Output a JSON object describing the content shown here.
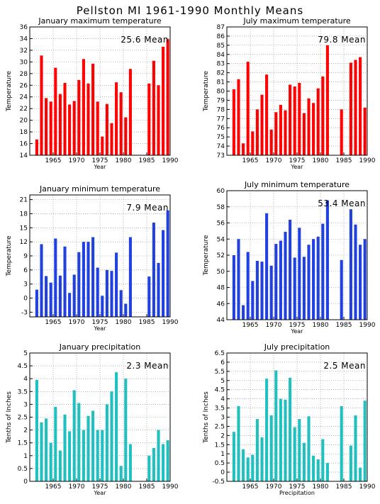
{
  "title": "Pellston MI   1961-1990 Monthly Means",
  "chart_data": [
    {
      "type": "bar",
      "title": "January maximum temperature",
      "ylabel": "Temperature",
      "xlabel": "Year",
      "mean_label": "25.6 Mean",
      "color": "#ff0000",
      "x": [
        1961,
        1962,
        1963,
        1964,
        1965,
        1966,
        1967,
        1968,
        1969,
        1970,
        1971,
        1972,
        1973,
        1974,
        1975,
        1976,
        1977,
        1978,
        1979,
        1980,
        1981,
        1982,
        1983,
        1984,
        1985,
        1986,
        1987,
        1988,
        1989,
        1990
      ],
      "values": [
        null,
        16.7,
        31.1,
        23.8,
        23.2,
        29.0,
        24.5,
        26.4,
        22.7,
        23.3,
        26.9,
        30.5,
        26.3,
        29.7,
        23.2,
        17.2,
        22.8,
        19.5,
        26.5,
        24.8,
        20.5,
        28.8,
        null,
        null,
        null,
        26.3,
        30.2,
        26.0,
        32.6,
        33.9
      ],
      "ylim": [
        14,
        36
      ],
      "yticks": [
        14,
        16,
        18,
        20,
        22,
        24,
        26,
        28,
        30,
        32,
        34,
        36
      ],
      "xticks": [
        1965,
        1970,
        1975,
        1980,
        1985,
        1990
      ]
    },
    {
      "type": "bar",
      "title": "July maximum temperature",
      "ylabel": "Temperature",
      "xlabel": "Year",
      "mean_label": "79.8 Mean",
      "color": "#ff0000",
      "x": [
        1961,
        1962,
        1963,
        1964,
        1965,
        1966,
        1967,
        1968,
        1969,
        1970,
        1971,
        1972,
        1973,
        1974,
        1975,
        1976,
        1977,
        1978,
        1979,
        1980,
        1981,
        1982,
        1983,
        1984,
        1985,
        1986,
        1987,
        1988,
        1989,
        1990
      ],
      "values": [
        null,
        80.2,
        81.3,
        74.3,
        83.2,
        75.6,
        78.0,
        79.6,
        81.8,
        75.8,
        77.7,
        78.5,
        77.9,
        80.7,
        80.5,
        80.9,
        77.6,
        79.2,
        78.7,
        80.3,
        81.6,
        85.0,
        null,
        null,
        78.0,
        null,
        83.1,
        83.4,
        83.7,
        78.2
      ],
      "ylim": [
        73,
        87
      ],
      "yticks": [
        73,
        74,
        75,
        76,
        77,
        78,
        79,
        80,
        81,
        82,
        83,
        84,
        85,
        86,
        87
      ],
      "xticks": [
        1965,
        1970,
        1975,
        1980,
        1985,
        1990
      ]
    },
    {
      "type": "bar",
      "title": "January minimum temperature",
      "ylabel": "Temperature",
      "xlabel": "Year",
      "mean_label": "7.9 Mean",
      "color": "#2040e0",
      "x": [
        1961,
        1962,
        1963,
        1964,
        1965,
        1966,
        1967,
        1968,
        1969,
        1970,
        1971,
        1972,
        1973,
        1974,
        1975,
        1976,
        1977,
        1978,
        1979,
        1980,
        1981,
        1982,
        1983,
        1984,
        1985,
        1986,
        1987,
        1988,
        1989,
        1990
      ],
      "values": [
        null,
        1.8,
        11.5,
        4.7,
        3.3,
        12.7,
        4.8,
        11.0,
        1.1,
        5.0,
        9.8,
        12.0,
        12.0,
        13.0,
        6.5,
        0.5,
        6.0,
        5.8,
        9.7,
        1.7,
        -1.2,
        13.0,
        null,
        null,
        null,
        4.6,
        16.1,
        7.5,
        14.5,
        18.7
      ],
      "ylim": [
        -4,
        22
      ],
      "yticks": [
        -3,
        0,
        3,
        6,
        9,
        12,
        15,
        18,
        21
      ],
      "xticks": [
        1965,
        1970,
        1975,
        1980,
        1985,
        1990
      ]
    },
    {
      "type": "bar",
      "title": "July minimum temperature",
      "ylabel": "Temperature",
      "xlabel": "Year",
      "mean_label": "53.4 Mean",
      "color": "#2040e0",
      "x": [
        1961,
        1962,
        1963,
        1964,
        1965,
        1966,
        1967,
        1968,
        1969,
        1970,
        1971,
        1972,
        1973,
        1974,
        1975,
        1976,
        1977,
        1978,
        1979,
        1980,
        1981,
        1982,
        1983,
        1984,
        1985,
        1986,
        1987,
        1988,
        1989,
        1990
      ],
      "values": [
        null,
        52.0,
        54.0,
        45.8,
        52.4,
        48.8,
        51.3,
        51.2,
        57.2,
        50.7,
        53.4,
        53.8,
        54.9,
        56.4,
        51.7,
        55.4,
        51.8,
        53.3,
        54.0,
        54.3,
        55.9,
        58.8,
        null,
        null,
        51.4,
        null,
        57.7,
        55.8,
        53.3,
        54.0
      ],
      "ylim": [
        44,
        60
      ],
      "yticks": [
        44,
        46,
        48,
        50,
        52,
        54,
        56,
        58,
        60
      ],
      "xticks": [
        1965,
        1970,
        1975,
        1980,
        1985,
        1990
      ]
    },
    {
      "type": "bar",
      "title": "January precipitation",
      "ylabel": "Tenths of Inches",
      "xlabel": "Year",
      "mean_label": "2.3 Mean",
      "color": "#20c0c0",
      "x": [
        1961,
        1962,
        1963,
        1964,
        1965,
        1966,
        1967,
        1968,
        1969,
        1970,
        1971,
        1972,
        1973,
        1974,
        1975,
        1976,
        1977,
        1978,
        1979,
        1980,
        1981,
        1982,
        1983,
        1984,
        1985,
        1986,
        1987,
        1988,
        1989,
        1990
      ],
      "values": [
        null,
        3.95,
        2.3,
        2.45,
        1.5,
        2.9,
        1.2,
        2.6,
        1.95,
        3.55,
        3.05,
        2.0,
        2.55,
        2.75,
        2.0,
        2.0,
        3.0,
        3.5,
        4.25,
        0.6,
        4.0,
        1.45,
        null,
        null,
        null,
        1.0,
        1.3,
        2.0,
        1.45,
        1.6
      ],
      "ylim": [
        0,
        5
      ],
      "yticks": [
        0,
        0.5,
        1,
        1.5,
        2,
        2.5,
        3,
        3.5,
        4,
        4.5,
        5
      ],
      "ytick_labels": [
        "0",
        "0.5",
        "1",
        "1.5",
        "2",
        "2.5",
        "3",
        "3.5",
        "4",
        "4.5",
        "5"
      ],
      "xticks": [
        1965,
        1970,
        1975,
        1980,
        1985,
        1990
      ]
    },
    {
      "type": "bar",
      "title": "July precipitation",
      "ylabel": "Tenths of Inches",
      "xlabel": "Precipitation",
      "mean_label": "2.5 Mean",
      "color": "#20c0c0",
      "x": [
        1961,
        1962,
        1963,
        1964,
        1965,
        1966,
        1967,
        1968,
        1969,
        1970,
        1971,
        1972,
        1973,
        1974,
        1975,
        1976,
        1977,
        1978,
        1979,
        1980,
        1981,
        1982,
        1983,
        1984,
        1985,
        1986,
        1987,
        1988,
        1989,
        1990
      ],
      "values": [
        null,
        2.2,
        3.6,
        1.25,
        0.8,
        0.95,
        2.9,
        1.9,
        5.1,
        3.1,
        5.55,
        4.0,
        3.95,
        5.15,
        2.45,
        2.9,
        1.6,
        3.05,
        0.9,
        0.7,
        1.8,
        0.5,
        null,
        null,
        3.6,
        null,
        1.45,
        3.1,
        0.25,
        3.9
      ],
      "ylim": [
        -0.5,
        6.5
      ],
      "yticks": [
        -0.5,
        0,
        0.5,
        1,
        1.5,
        2,
        2.5,
        3,
        3.5,
        4,
        4.5,
        5,
        5.5,
        6,
        6.5
      ],
      "ytick_labels": [
        "-0.5",
        "0",
        "0.5",
        "1",
        "1.5",
        "2",
        "2.5",
        "3",
        "3.5",
        "4",
        "4.5",
        "5",
        "5.5",
        "6",
        "6.5"
      ],
      "xticks": [
        1965,
        1970,
        1975,
        1980,
        1985,
        1990
      ]
    }
  ]
}
